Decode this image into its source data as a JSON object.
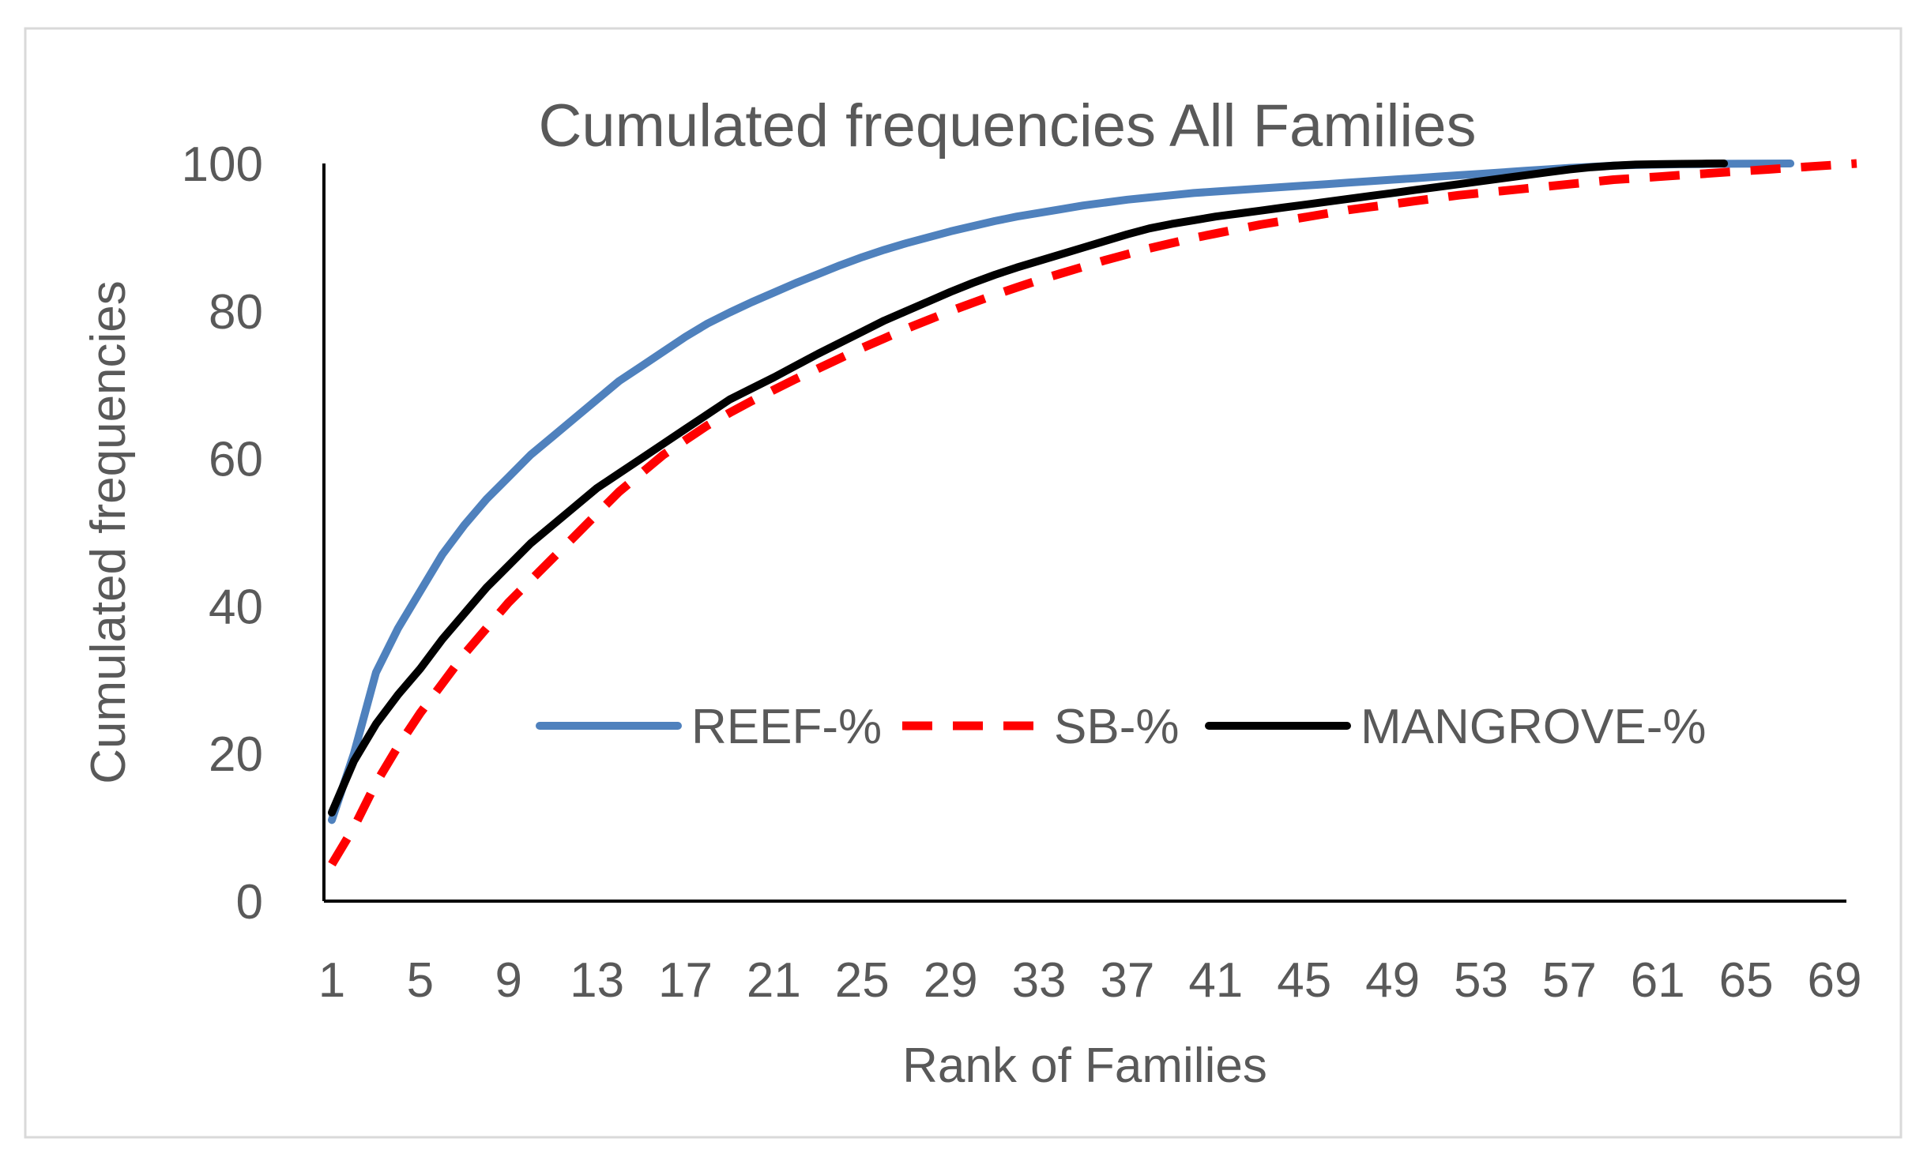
{
  "chart_data": {
    "type": "line",
    "title": "Cumulated frequencies All Families",
    "xlabel": "Rank of Families",
    "ylabel": "Cumulated frequencies",
    "ylim": [
      0,
      100
    ],
    "xlim": [
      1,
      70
    ],
    "yticks": [
      0,
      20,
      40,
      60,
      80,
      100
    ],
    "xticks": [
      1,
      5,
      9,
      13,
      17,
      21,
      25,
      29,
      33,
      37,
      41,
      45,
      49,
      53,
      57,
      61,
      65,
      69
    ],
    "grid": false,
    "legend_position": "center-right",
    "series": [
      {
        "name": "REEF-%",
        "color": "#4f81bd",
        "dash": "solid",
        "x": [
          1,
          2,
          3,
          4,
          5,
          6,
          7,
          8,
          9,
          10,
          11,
          12,
          13,
          14,
          15,
          16,
          17,
          18,
          19,
          20,
          21,
          22,
          23,
          24,
          25,
          26,
          27,
          28,
          29,
          30,
          31,
          32,
          33,
          34,
          35,
          36,
          37,
          38,
          39,
          40,
          41,
          42,
          43,
          44,
          45,
          46,
          47,
          48,
          49,
          50,
          51,
          52,
          53,
          54,
          55,
          56,
          57,
          58,
          59,
          60,
          61,
          62,
          63,
          64,
          65,
          66,
          67
        ],
        "values": [
          11,
          20,
          31,
          37,
          42,
          47,
          51,
          54.5,
          57.5,
          60.5,
          63,
          65.5,
          68,
          70.5,
          72.5,
          74.5,
          76.5,
          78.3,
          79.8,
          81.2,
          82.5,
          83.8,
          85,
          86.2,
          87.3,
          88.3,
          89.2,
          90,
          90.8,
          91.5,
          92.2,
          92.8,
          93.3,
          93.8,
          94.3,
          94.7,
          95.1,
          95.4,
          95.7,
          96,
          96.2,
          96.4,
          96.6,
          96.8,
          97,
          97.2,
          97.4,
          97.6,
          97.8,
          98,
          98.2,
          98.4,
          98.6,
          98.8,
          99,
          99.2,
          99.4,
          99.55,
          99.7,
          99.8,
          99.85,
          99.9,
          99.93,
          99.96,
          99.98,
          99.99,
          100
        ]
      },
      {
        "name": "SB-%",
        "color": "#ff0000",
        "dash": "dashed",
        "x": [
          1,
          2,
          3,
          4,
          5,
          6,
          7,
          8,
          9,
          10,
          11,
          12,
          13,
          14,
          15,
          16,
          17,
          18,
          19,
          20,
          21,
          22,
          23,
          24,
          25,
          26,
          27,
          28,
          29,
          30,
          31,
          32,
          33,
          34,
          35,
          36,
          37,
          38,
          39,
          40,
          41,
          42,
          43,
          44,
          45,
          46,
          47,
          48,
          49,
          50,
          51,
          52,
          53,
          54,
          55,
          56,
          57,
          58,
          59,
          60,
          61,
          62,
          63,
          64,
          65,
          66,
          67,
          68,
          69,
          70
        ],
        "values": [
          5,
          10,
          16,
          21,
          25.5,
          29.5,
          33.5,
          37,
          40.5,
          43.5,
          46.5,
          49.5,
          52.5,
          55.5,
          58,
          60.5,
          62.5,
          64.5,
          66.2,
          67.8,
          69.3,
          70.8,
          72.2,
          73.6,
          75,
          76.3,
          77.6,
          78.8,
          80,
          81.1,
          82.2,
          83.2,
          84.2,
          85.1,
          86,
          86.9,
          87.7,
          88.5,
          89.2,
          89.9,
          90.5,
          91.1,
          91.7,
          92.2,
          92.7,
          93.2,
          93.7,
          94.1,
          94.5,
          94.9,
          95.3,
          95.7,
          96,
          96.3,
          96.6,
          96.9,
          97.2,
          97.5,
          97.8,
          98,
          98.2,
          98.4,
          98.6,
          98.8,
          99,
          99.2,
          99.4,
          99.6,
          99.8,
          100
        ]
      },
      {
        "name": "MANGROVE-%",
        "color": "#000000",
        "dash": "solid",
        "x": [
          1,
          2,
          3,
          4,
          5,
          6,
          7,
          8,
          9,
          10,
          11,
          12,
          13,
          14,
          15,
          16,
          17,
          18,
          19,
          20,
          21,
          22,
          23,
          24,
          25,
          26,
          27,
          28,
          29,
          30,
          31,
          32,
          33,
          34,
          35,
          36,
          37,
          38,
          39,
          40,
          41,
          42,
          43,
          44,
          45,
          46,
          47,
          48,
          49,
          50,
          51,
          52,
          53,
          54,
          55,
          56,
          57,
          58,
          59,
          60,
          61,
          62,
          63,
          64
        ],
        "values": [
          12,
          19,
          24,
          28,
          31.5,
          35.5,
          39,
          42.5,
          45.5,
          48.5,
          51,
          53.5,
          56,
          58,
          60,
          62,
          64,
          66,
          68,
          69.5,
          71,
          72.6,
          74.2,
          75.7,
          77.2,
          78.7,
          80,
          81.3,
          82.6,
          83.8,
          84.9,
          85.9,
          86.8,
          87.7,
          88.6,
          89.5,
          90.4,
          91.2,
          91.8,
          92.3,
          92.8,
          93.2,
          93.6,
          94,
          94.4,
          94.8,
          95.2,
          95.6,
          96,
          96.4,
          96.8,
          97.2,
          97.6,
          98,
          98.4,
          98.8,
          99.2,
          99.5,
          99.7,
          99.85,
          99.9,
          99.95,
          99.98,
          100
        ]
      }
    ]
  }
}
